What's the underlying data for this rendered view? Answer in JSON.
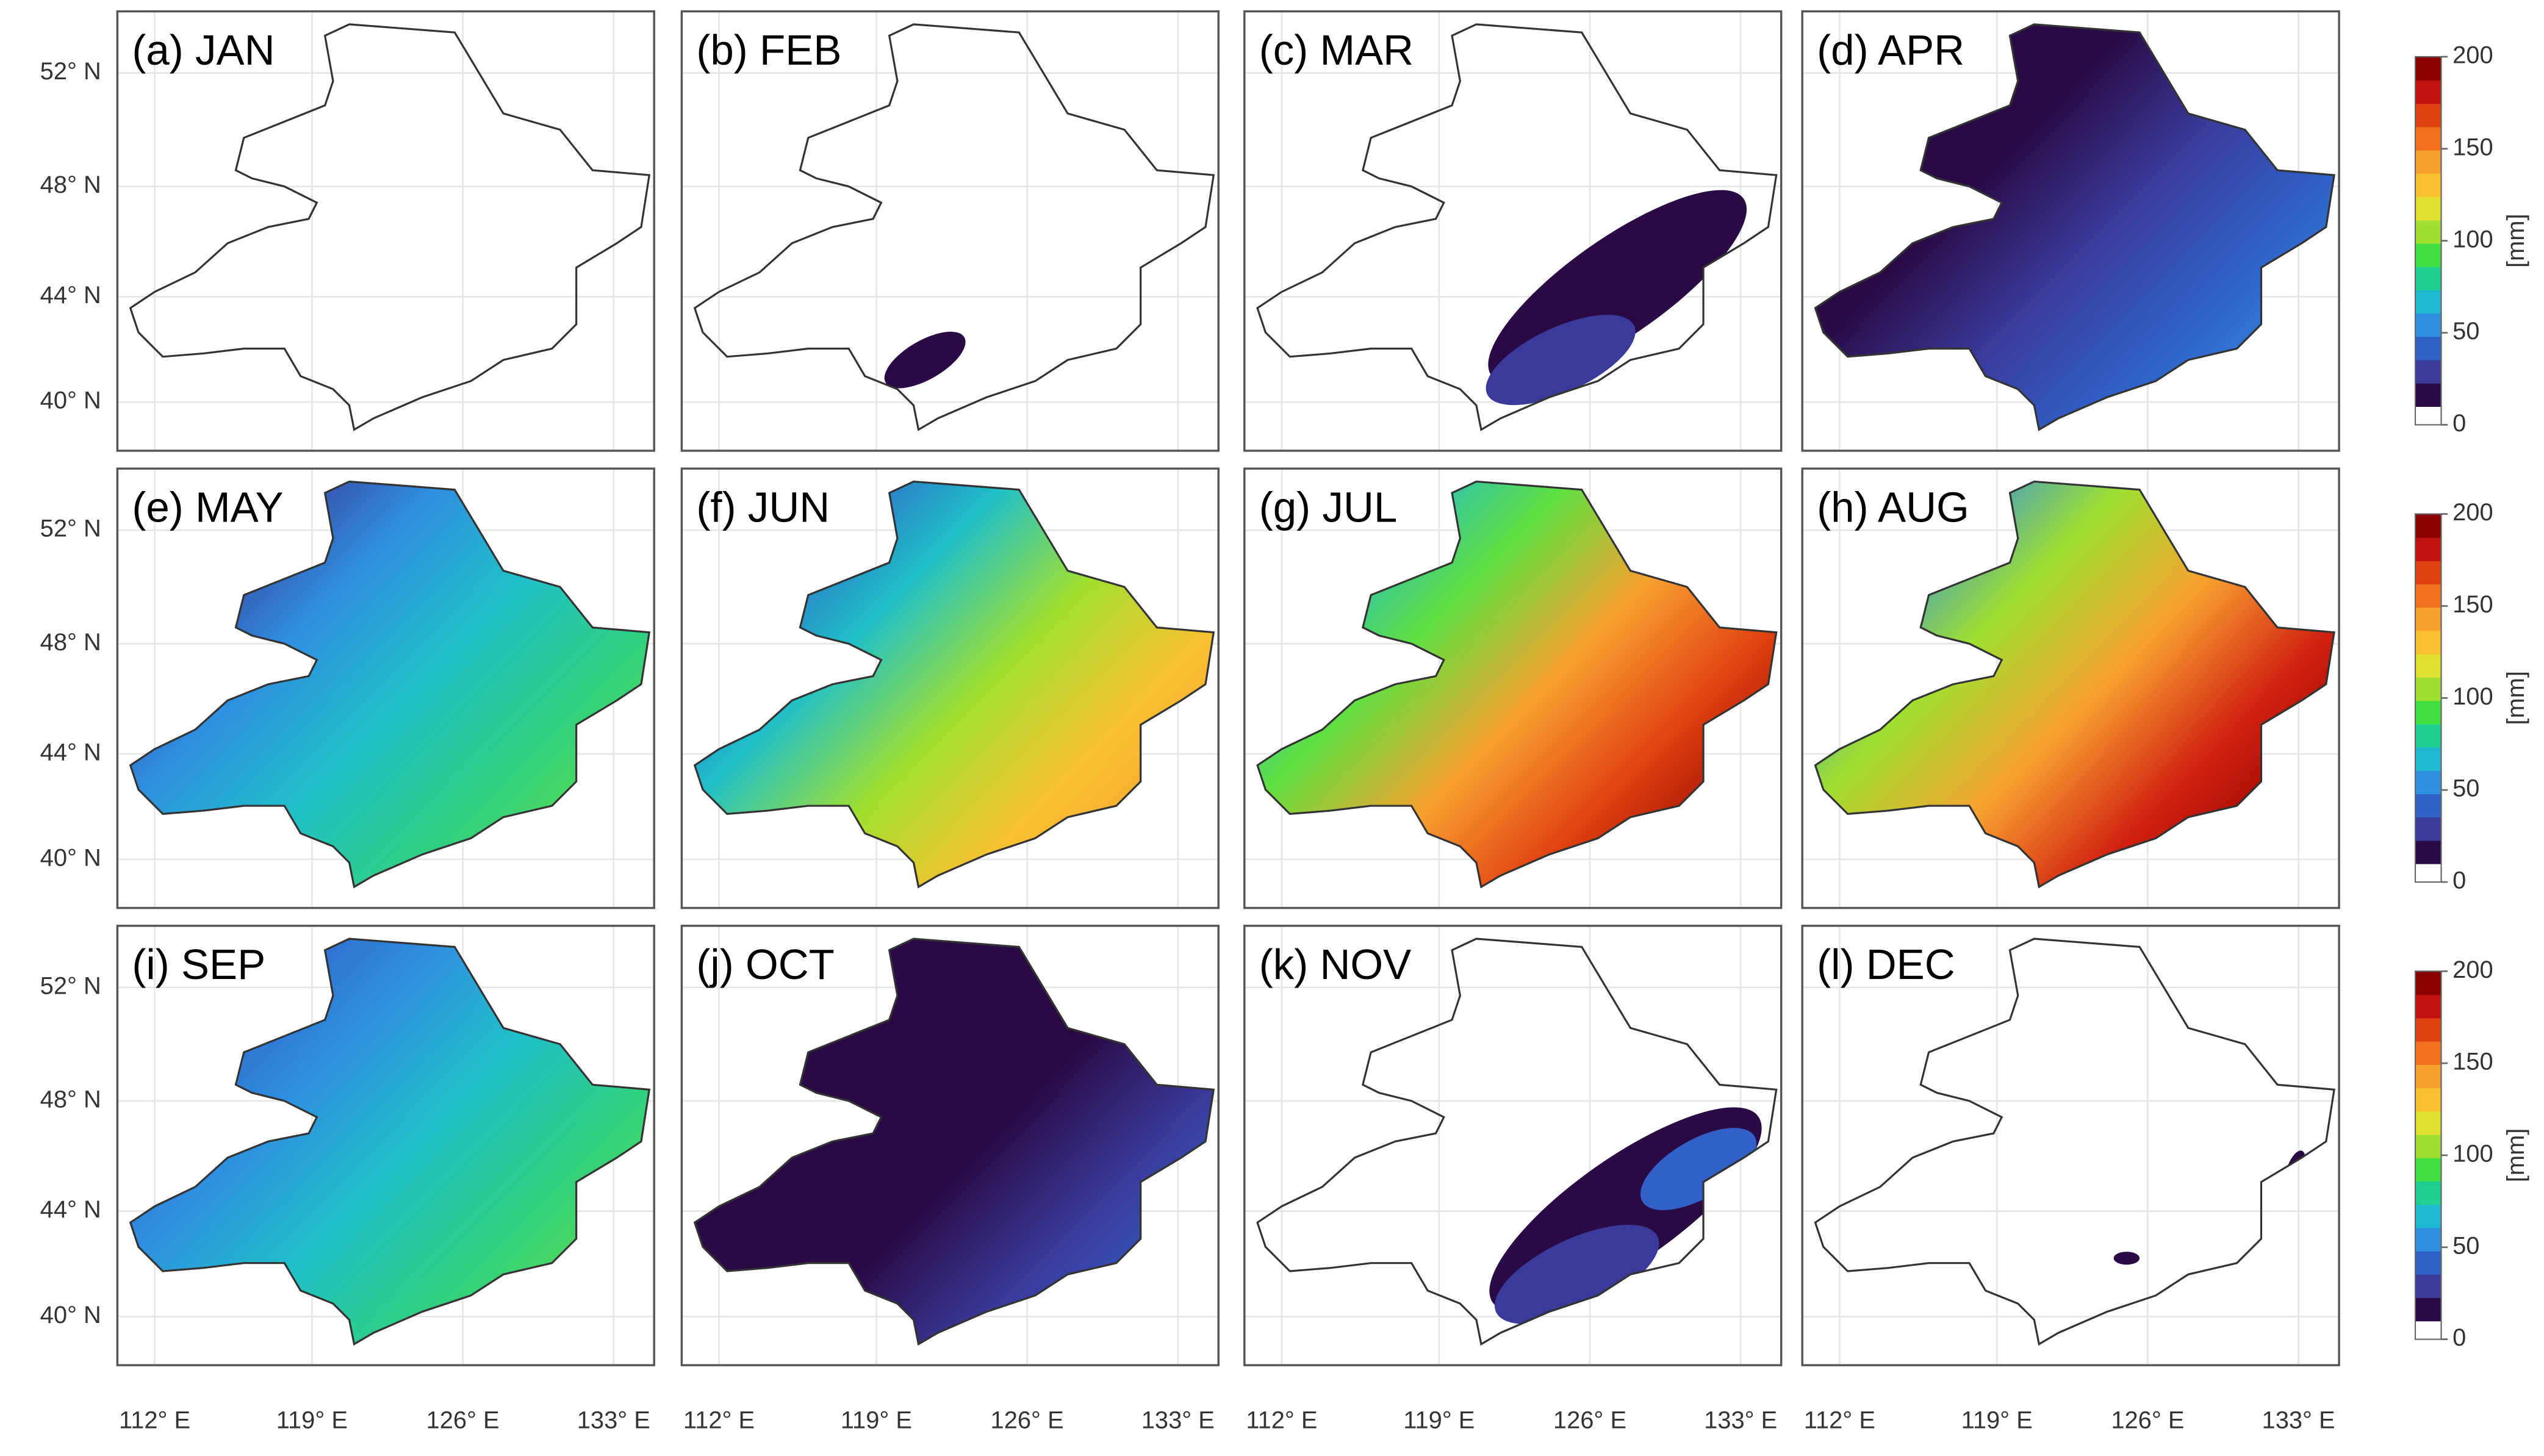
{
  "panels": [
    {
      "label": "(a) JAN"
    },
    {
      "label": "(b) FEB"
    },
    {
      "label": "(c) MAR"
    },
    {
      "label": "(d) APR"
    },
    {
      "label": "(e) MAY"
    },
    {
      "label": "(f) JUN"
    },
    {
      "label": "(g) JUL"
    },
    {
      "label": "(h) AUG"
    },
    {
      "label": "(i) SEP"
    },
    {
      "label": "(j) OCT"
    },
    {
      "label": "(k) NOV"
    },
    {
      "label": "(l) DEC"
    }
  ],
  "lat_ticks": [
    "52° N",
    "48° N",
    "44° N",
    "40° N"
  ],
  "lon_ticks": [
    "112° E",
    "119° E",
    "126° E",
    "133° E"
  ],
  "colorbar": {
    "label": "[mm]",
    "ticks": [
      0,
      50,
      100,
      150,
      200
    ],
    "range": [
      0,
      200
    ]
  }
}
